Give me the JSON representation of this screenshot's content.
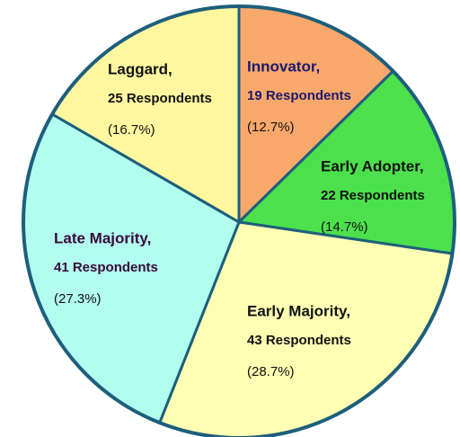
{
  "chart_data": {
    "type": "pie",
    "categories": [
      "Innovator,",
      "Early Adopter,",
      "Early Majority,",
      "Late Majority,",
      "Laggard,"
    ],
    "values": [
      19,
      22,
      43,
      41,
      25
    ],
    "value_labels": [
      "19 Respondents",
      "22 Respondents",
      "43 Respondents",
      "41 Respondents",
      "25 Respondents"
    ],
    "percent_labels": [
      "(12.7%)",
      "(14.7%)",
      "(28.7%)",
      "(27.3%)",
      "(16.7%)"
    ],
    "colors": [
      "#f9a86c",
      "#4ce04c",
      "#ffffb4",
      "#b2fcf0",
      "#fff7a0"
    ],
    "border_color": "#1d5f7c"
  }
}
